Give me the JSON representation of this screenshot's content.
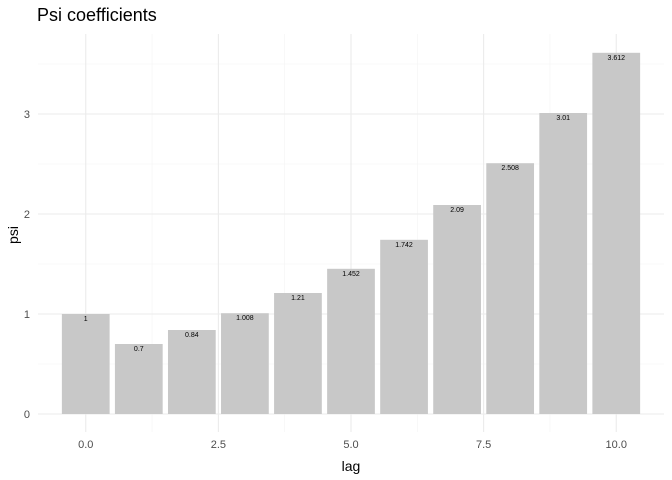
{
  "chart_data": {
    "type": "bar",
    "title": "Psi coefficients",
    "xlabel": "lag",
    "ylabel": "psi",
    "x": [
      0,
      1,
      2,
      3,
      4,
      5,
      6,
      7,
      8,
      9,
      10
    ],
    "values": [
      1,
      0.7,
      0.84,
      1.008,
      1.21,
      1.452,
      1.742,
      2.09,
      2.508,
      3.01,
      3.612
    ],
    "labels": [
      "1",
      "0.7",
      "0.84",
      "1.008",
      "1.21",
      "1.452",
      "1.742",
      "2.09",
      "2.508",
      "3.01",
      "3.612"
    ],
    "xticks": [
      "0.0",
      "2.5",
      "5.0",
      "7.5",
      "10.0"
    ],
    "xtick_values": [
      0,
      2.5,
      5,
      7.5,
      10
    ],
    "yticks": [
      "0",
      "1",
      "2",
      "3"
    ],
    "ytick_values": [
      0,
      1,
      2,
      3
    ],
    "xlim": [
      -0.9,
      10.9
    ],
    "ylim": [
      -0.18,
      3.8
    ],
    "grid": true,
    "bar_color": "#c8c8c8",
    "grid_major_color": "#ebebeb",
    "grid_minor_color": "#f4f4f4"
  }
}
